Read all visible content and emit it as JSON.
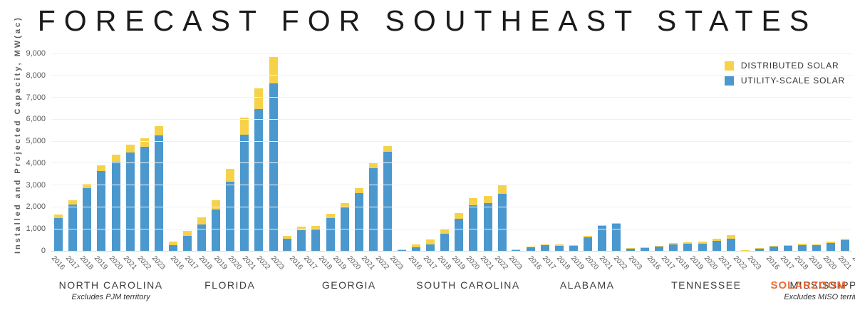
{
  "title": "FORECAST FOR SOUTHEAST STATES",
  "watermark": {
    "text": "SOLARZOOM",
    "color": "#e8612c"
  },
  "legend": [
    {
      "label": "DISTRIBUTED SOLAR",
      "color": "#f6d24b",
      "key": "distributed"
    },
    {
      "label": "UTILITY-SCALE SOLAR",
      "color": "#4a98cd",
      "key": "utility"
    }
  ],
  "chart_data": {
    "type": "bar",
    "stacked": true,
    "title": "FORECAST FOR SOUTHEAST STATES",
    "ylabel": "Installed and Projected Capacity, MW(ac)",
    "xlabel": "",
    "ylim": [
      0,
      9000
    ],
    "grid": true,
    "legend_position": "top-right",
    "colors": {
      "distributed": "#f6d24b",
      "utility": "#4a98cd"
    },
    "y_ticks": [
      {
        "value": 0,
        "label": "0"
      },
      {
        "value": 1000,
        "label": "1,000"
      },
      {
        "value": 2000,
        "label": "2,000"
      },
      {
        "value": 3000,
        "label": "3,000"
      },
      {
        "value": 4000,
        "label": "4,000"
      },
      {
        "value": 5000,
        "label": "5,000"
      },
      {
        "value": 6000,
        "label": "6,000"
      },
      {
        "value": 7000,
        "label": "7,000"
      },
      {
        "value": 8000,
        "label": "8,000"
      },
      {
        "value": 9000,
        "label": "9,000"
      }
    ],
    "years": [
      "2016",
      "2017",
      "2018",
      "2019",
      "2020",
      "2021",
      "2022",
      "2023"
    ],
    "series_names": [
      "UTILITY-SCALE SOLAR",
      "DISTRIBUTED SOLAR"
    ],
    "groups": [
      {
        "state": "NORTH CAROLINA",
        "subtitle": "Excludes PJM territory",
        "utility": [
          1500,
          2100,
          2850,
          3650,
          4050,
          4500,
          4750,
          5250
        ],
        "distributed": [
          150,
          200,
          200,
          250,
          350,
          350,
          400,
          450
        ]
      },
      {
        "state": "FLORIDA",
        "subtitle": "",
        "utility": [
          250,
          670,
          1190,
          1870,
          3150,
          5300,
          6450,
          7650
        ],
        "distributed": [
          180,
          230,
          340,
          430,
          600,
          780,
          970,
          1180
        ]
      },
      {
        "state": "GEORGIA",
        "subtitle": "",
        "utility": [
          550,
          930,
          970,
          1490,
          1970,
          2640,
          3780,
          4530
        ],
        "distributed": [
          130,
          160,
          160,
          200,
          220,
          230,
          220,
          250
        ]
      },
      {
        "state": "SOUTH CAROLINA",
        "subtitle": "",
        "utility": [
          25,
          160,
          290,
          790,
          1450,
          2080,
          2180,
          2610
        ],
        "distributed": [
          35,
          130,
          240,
          210,
          270,
          320,
          330,
          380
        ]
      },
      {
        "state": "ALABAMA",
        "subtitle": "",
        "utility": [
          5,
          160,
          250,
          240,
          220,
          630,
          1130,
          1230
        ],
        "distributed": [
          25,
          10,
          10,
          10,
          10,
          20,
          20,
          20
        ]
      },
      {
        "state": "TENNESSEE",
        "subtitle": "",
        "utility": [
          90,
          115,
          180,
          295,
          320,
          340,
          450,
          540
        ],
        "distributed": [
          20,
          25,
          35,
          70,
          80,
          90,
          110,
          160
        ]
      },
      {
        "state": "MISSISSIPPI",
        "subtitle": "Excludes MISO territory",
        "utility": [
          0,
          100,
          195,
          225,
          275,
          245,
          360,
          500
        ],
        "distributed": [
          15,
          10,
          10,
          10,
          10,
          10,
          60,
          60
        ]
      }
    ]
  }
}
